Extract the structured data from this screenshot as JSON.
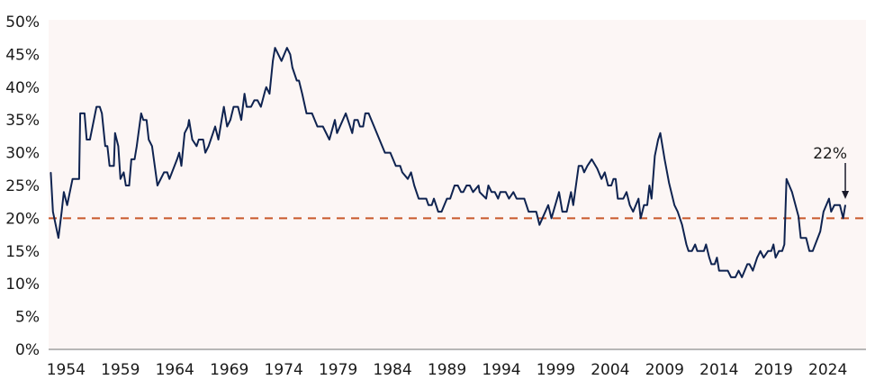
{
  "chart_data": {
    "type": "line",
    "title": "",
    "xlabel": "",
    "ylabel": "",
    "xlim": [
      1952.4,
      2027.5
    ],
    "ylim": [
      0,
      50
    ],
    "x_ticks": [
      "1954",
      "1959",
      "1964",
      "1969",
      "1974",
      "1979",
      "1984",
      "1989",
      "1994",
      "1999",
      "2004",
      "2009",
      "2014",
      "2019",
      "2024"
    ],
    "y_ticks": [
      "0%",
      "5%",
      "10%",
      "15%",
      "20%",
      "25%",
      "30%",
      "35%",
      "40%",
      "45%",
      "50%"
    ],
    "grid": false,
    "colors": {
      "series": "#0f2350",
      "reference": "#c8582a",
      "plot_background": "#fcf6f5",
      "axis": "#a0a0a0"
    },
    "reference_line": {
      "value": 20,
      "style": "dashed"
    },
    "annotation": {
      "text": "22%",
      "x": 2025.6,
      "y": 22,
      "arrow": "down"
    },
    "series": [
      {
        "x": [
          1952.6,
          1952.8,
          1953.3,
          1953.6,
          1953.8,
          1954.1,
          1954.6,
          1955.2,
          1955.3,
          1955.7,
          1955.9,
          1956.2,
          1956.8,
          1957.1,
          1957.3,
          1957.6,
          1957.8,
          1958.0,
          1958.4,
          1958.5,
          1958.8,
          1959.0,
          1959.3,
          1959.5,
          1959.8,
          1960.0,
          1960.3,
          1960.5,
          1960.9,
          1961.1,
          1961.4,
          1961.6,
          1961.9,
          1962.4,
          1963.0,
          1963.3,
          1963.5,
          1964.2,
          1964.4,
          1964.6,
          1964.9,
          1965.2,
          1965.3,
          1965.6,
          1966.0,
          1966.2,
          1966.6,
          1966.8,
          1967.1,
          1967.5,
          1967.7,
          1968.0,
          1968.3,
          1968.5,
          1968.8,
          1969.1,
          1969.4,
          1969.8,
          1970.1,
          1970.4,
          1970.6,
          1971.0,
          1971.3,
          1971.6,
          1971.9,
          1972.3,
          1972.4,
          1972.7,
          1973.0,
          1973.2,
          1973.8,
          1974.3,
          1974.6,
          1974.8,
          1975.2,
          1975.4,
          1975.7,
          1976.1,
          1976.6,
          1977.1,
          1977.6,
          1978.2,
          1978.7,
          1978.9,
          1979.7,
          1980.3,
          1980.5,
          1980.8,
          1981.0,
          1981.3,
          1981.5,
          1981.8,
          1983.3,
          1983.8,
          1984.3,
          1984.7,
          1984.9,
          1985.4,
          1985.7,
          1986.0,
          1986.4,
          1987.1,
          1987.3,
          1987.6,
          1987.8,
          1988.2,
          1988.5,
          1989.0,
          1989.3,
          1989.7,
          1990.0,
          1990.3,
          1990.5,
          1990.8,
          1991.1,
          1991.4,
          1991.9,
          1992.0,
          1992.6,
          1992.8,
          1993.1,
          1993.4,
          1993.7,
          1993.9,
          1994.4,
          1994.7,
          1995.1,
          1995.4,
          1996.1,
          1996.5,
          1997.2,
          1997.5,
          1998.3,
          1998.6,
          1999.3,
          1999.6,
          2000.0,
          2000.4,
          2000.6,
          2001.1,
          2001.4,
          2001.6,
          2001.9,
          2002.3,
          2002.8,
          2003.2,
          2003.5,
          2003.8,
          2004.1,
          2004.3,
          2004.5,
          2004.7,
          2005.2,
          2005.5,
          2005.8,
          2006.1,
          2006.6,
          2006.8,
          2007.1,
          2007.4,
          2007.6,
          2007.8,
          2008.1,
          2008.4,
          2008.6,
          2008.9,
          2009.0,
          2009.4,
          2009.9,
          2010.2,
          2010.6,
          2011.0,
          2011.2,
          2011.5,
          2011.8,
          2012.0,
          2012.6,
          2012.8,
          2013.1,
          2013.3,
          2013.6,
          2013.8,
          2014.0,
          2014.8,
          2015.1,
          2015.5,
          2015.8,
          2016.1,
          2016.6,
          2016.8,
          2017.1,
          2017.5,
          2017.8,
          2018.1,
          2018.5,
          2018.8,
          2019.0,
          2019.2,
          2019.5,
          2019.8,
          2020.0,
          2020.2,
          2020.7,
          2021.3,
          2021.5,
          2022.0,
          2022.3,
          2022.6,
          2023.3,
          2023.6,
          2024.1,
          2024.3,
          2024.6,
          2025.1,
          2025.4,
          2025.6
        ],
        "values": [
          27,
          21,
          17,
          21,
          24,
          22,
          26,
          26,
          36,
          36,
          32,
          32,
          37,
          37,
          36,
          31,
          31,
          28,
          28,
          33,
          31,
          26,
          27,
          25,
          25,
          29,
          29,
          31,
          36,
          35,
          35,
          32,
          31,
          25,
          27,
          27,
          26,
          29,
          30,
          28,
          33,
          34,
          35,
          32,
          31,
          32,
          32,
          30,
          31,
          33,
          34,
          32,
          35,
          37,
          34,
          35,
          37,
          37,
          35,
          39,
          37,
          37,
          38,
          38,
          37,
          39.5,
          40,
          39,
          44,
          46,
          44,
          46,
          45,
          43,
          41,
          41,
          39,
          36,
          36,
          34,
          34,
          32,
          35,
          33,
          36,
          33,
          35,
          35,
          34,
          34,
          36,
          36,
          30,
          30,
          28,
          28,
          27,
          26,
          27,
          25,
          23,
          23,
          22,
          22,
          23,
          21,
          21,
          23,
          23,
          25,
          25,
          24,
          24,
          25,
          25,
          24,
          25,
          24,
          23,
          25,
          24,
          24,
          23,
          24,
          24,
          23,
          24,
          23,
          23,
          21,
          21,
          19,
          22,
          20,
          24,
          21,
          21,
          24,
          22,
          28,
          28,
          27,
          28,
          29,
          27.6,
          26,
          27,
          25,
          25,
          26,
          26,
          23,
          23,
          24,
          22,
          21,
          23,
          20,
          22,
          22,
          25,
          23,
          29.5,
          32,
          33,
          30,
          29,
          25.4,
          22,
          21,
          19,
          16,
          15,
          15,
          16,
          15,
          15,
          16,
          14,
          13,
          13,
          14,
          12,
          12,
          11,
          11,
          12,
          11,
          13,
          13,
          12,
          14,
          15,
          14,
          15,
          15,
          16,
          14,
          15,
          15,
          16,
          26,
          24,
          20.3,
          17,
          17,
          15,
          15,
          18,
          21,
          23,
          21,
          22,
          22,
          20,
          22
        ]
      }
    ]
  }
}
